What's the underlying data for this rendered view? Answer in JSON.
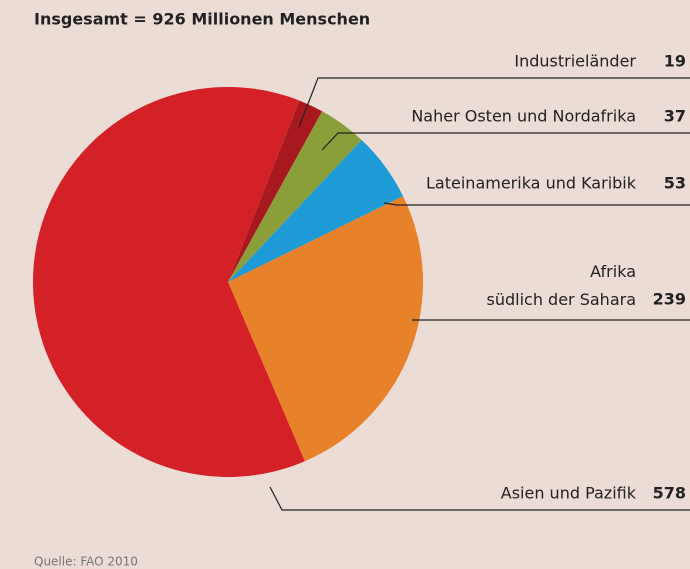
{
  "chart_data": {
    "type": "pie",
    "title": "Insgesamt = 926 Millionen Menschen",
    "categories": [
      "Industrieländer",
      "Naher Osten und Nordafrika",
      "Lateinamerika und Karibik",
      "Afrika\nsüdlich der Sahara",
      "Asien und Pazifik"
    ],
    "values": [
      19,
      37,
      53,
      239,
      578
    ],
    "colors": [
      "#a8191f",
      "#8a9f3a",
      "#1e9ad6",
      "#e8822a",
      "#d42027"
    ],
    "source": "Quelle: FAO 2010"
  }
}
